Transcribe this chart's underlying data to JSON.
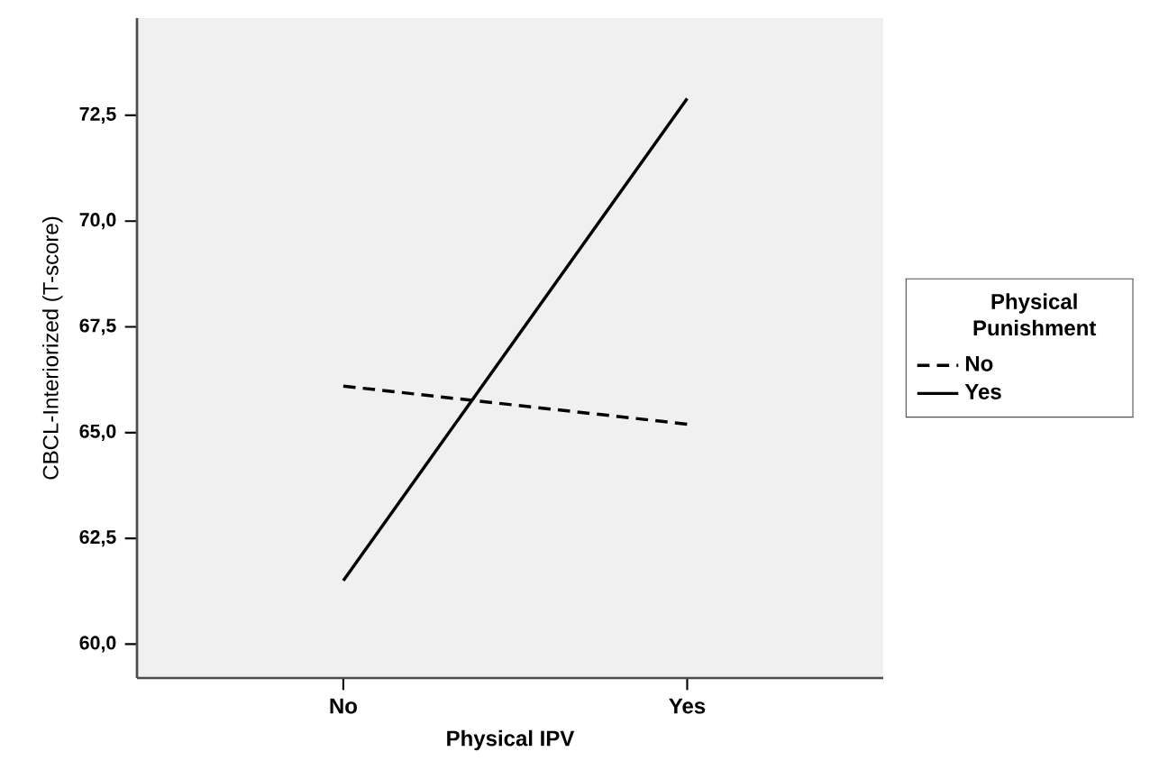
{
  "chart_data": {
    "type": "line",
    "xlabel": "Physical IPV",
    "ylabel": "CBCL-Interiorized (T-score)",
    "legend_title": "Physical Punishment",
    "legend": "right",
    "grid": false,
    "marker": "none",
    "categories": [
      "No",
      "Yes"
    ],
    "series": [
      {
        "name": "No",
        "color": "#000000",
        "line_style": "dashed",
        "values": [
          66.1,
          65.2
        ]
      },
      {
        "name": "Yes",
        "color": "#000000",
        "line_style": "solid",
        "values": [
          61.5,
          72.9
        ]
      }
    ],
    "ylim": [
      59.2,
      74.8
    ],
    "yticks": [
      {
        "value": 60.0,
        "label": "60,0"
      },
      {
        "value": 62.5,
        "label": "62,5"
      },
      {
        "value": 65.0,
        "label": "65,0"
      },
      {
        "value": 67.5,
        "label": "67,5"
      },
      {
        "value": 70.0,
        "label": "70,0"
      },
      {
        "value": 72.5,
        "label": "72,5"
      }
    ]
  }
}
